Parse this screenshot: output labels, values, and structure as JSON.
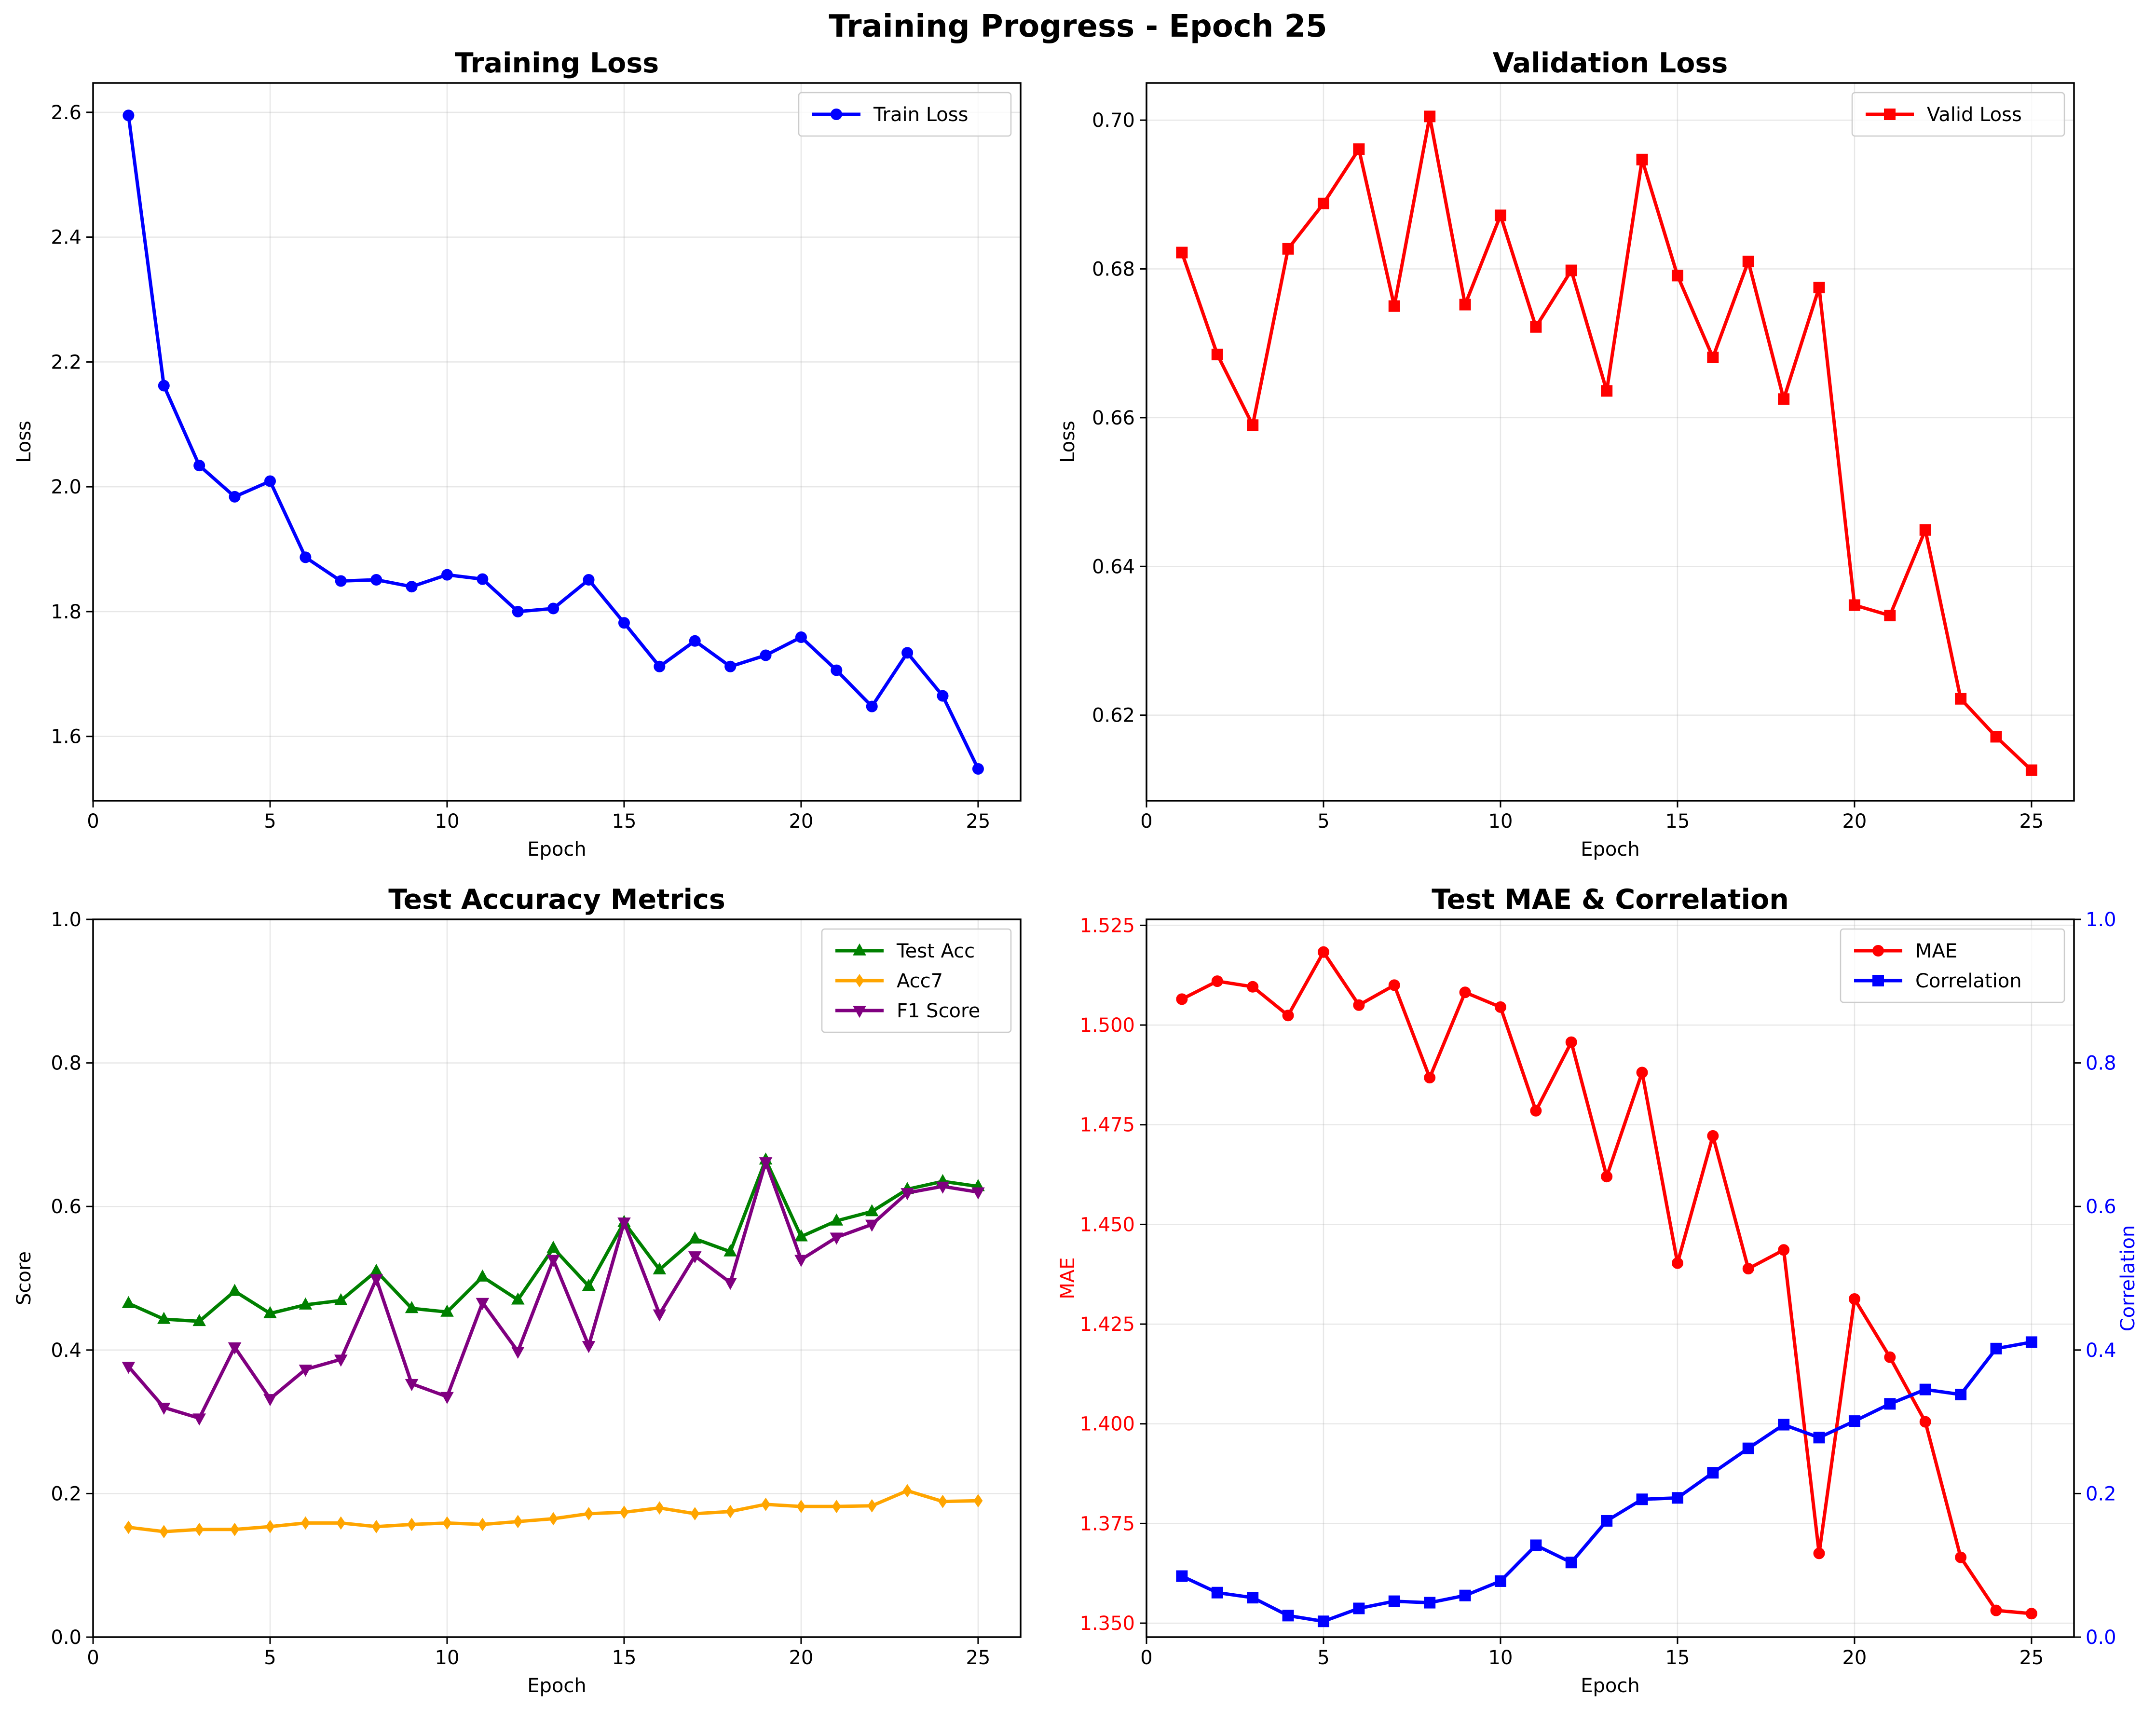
{
  "figure": {
    "title": "Training Progress - Epoch 25"
  },
  "chart_data": [
    {
      "type": "line",
      "title": "Training Loss",
      "xlabel": "Epoch",
      "ylabel": "Loss",
      "xlim": [
        0,
        26.2
      ],
      "ylim": [
        1.497,
        2.647
      ],
      "xticks": [
        0,
        5,
        10,
        15,
        20,
        25
      ],
      "yticks": [
        1.6,
        1.8,
        2.0,
        2.2,
        2.4,
        2.6
      ],
      "ytick_decimals": 1,
      "grid": true,
      "legend": "top-right",
      "x": [
        1,
        2,
        3,
        4,
        5,
        6,
        7,
        8,
        9,
        10,
        11,
        12,
        13,
        14,
        15,
        16,
        17,
        18,
        19,
        20,
        21,
        22,
        23,
        24,
        25
      ],
      "series": [
        {
          "name": "Train Loss",
          "color": "#0000ff",
          "marker": "circle",
          "values": [
            2.595,
            2.162,
            2.034,
            1.984,
            2.009,
            1.887,
            1.849,
            1.851,
            1.84,
            1.859,
            1.852,
            1.8,
            1.805,
            1.851,
            1.782,
            1.712,
            1.753,
            1.712,
            1.73,
            1.759,
            1.706,
            1.648,
            1.734,
            1.665,
            1.548
          ]
        }
      ]
    },
    {
      "type": "line",
      "title": "Validation Loss",
      "xlabel": "Epoch",
      "ylabel": "Loss",
      "xlim": [
        0,
        26.2
      ],
      "ylim": [
        0.6085,
        0.705
      ],
      "xticks": [
        0,
        5,
        10,
        15,
        20,
        25
      ],
      "yticks": [
        0.62,
        0.64,
        0.66,
        0.68,
        0.7
      ],
      "ytick_decimals": 2,
      "grid": true,
      "legend": "top-right",
      "x": [
        1,
        2,
        3,
        4,
        5,
        6,
        7,
        8,
        9,
        10,
        11,
        12,
        13,
        14,
        15,
        16,
        17,
        18,
        19,
        20,
        21,
        22,
        23,
        24,
        25
      ],
      "series": [
        {
          "name": "Valid Loss",
          "color": "#ff0000",
          "marker": "square",
          "values": [
            0.6822,
            0.6685,
            0.659,
            0.6827,
            0.6888,
            0.6961,
            0.675,
            0.7005,
            0.6752,
            0.6872,
            0.6722,
            0.6798,
            0.6636,
            0.6947,
            0.6791,
            0.6681,
            0.681,
            0.6625,
            0.6775,
            0.6348,
            0.6334,
            0.6449,
            0.6222,
            0.6171,
            0.6126
          ]
        }
      ]
    },
    {
      "type": "line",
      "title": "Test Accuracy Metrics",
      "xlabel": "Epoch",
      "ylabel": "Score",
      "xlim": [
        0,
        26.2
      ],
      "ylim": [
        0,
        1.0
      ],
      "xticks": [
        0,
        5,
        10,
        15,
        20,
        25
      ],
      "yticks": [
        0.0,
        0.2,
        0.4,
        0.6,
        0.8,
        1.0
      ],
      "ytick_decimals": 1,
      "grid": true,
      "legend": "top-right",
      "x": [
        1,
        2,
        3,
        4,
        5,
        6,
        7,
        8,
        9,
        10,
        11,
        12,
        13,
        14,
        15,
        16,
        17,
        18,
        19,
        20,
        21,
        22,
        23,
        24,
        25
      ],
      "series": [
        {
          "name": "Test Acc",
          "color": "#008000",
          "marker": "triangle-up",
          "values": [
            0.465,
            0.443,
            0.44,
            0.482,
            0.451,
            0.463,
            0.469,
            0.51,
            0.458,
            0.453,
            0.502,
            0.47,
            0.542,
            0.489,
            0.578,
            0.512,
            0.555,
            0.537,
            0.665,
            0.558,
            0.58,
            0.593,
            0.624,
            0.635,
            0.628
          ]
        },
        {
          "name": "Acc7",
          "color": "#ffa500",
          "marker": "diamond",
          "values": [
            0.153,
            0.147,
            0.15,
            0.15,
            0.154,
            0.159,
            0.159,
            0.154,
            0.157,
            0.159,
            0.157,
            0.161,
            0.165,
            0.172,
            0.174,
            0.18,
            0.172,
            0.175,
            0.185,
            0.182,
            0.182,
            0.183,
            0.204,
            0.189,
            0.19
          ]
        },
        {
          "name": "F1 Score",
          "color": "#800080",
          "marker": "triangle-down",
          "values": [
            0.377,
            0.32,
            0.305,
            0.404,
            0.332,
            0.373,
            0.387,
            0.499,
            0.353,
            0.335,
            0.466,
            0.398,
            0.526,
            0.406,
            0.578,
            0.45,
            0.531,
            0.494,
            0.662,
            0.526,
            0.557,
            0.575,
            0.619,
            0.628,
            0.62
          ]
        }
      ]
    },
    {
      "type": "line",
      "title": "Test MAE & Correlation",
      "xlabel": "Epoch",
      "ylabel": "MAE",
      "ylabel_right": "Correlation",
      "xlim": [
        0,
        26.2
      ],
      "ylim": [
        1.3465,
        1.5265
      ],
      "ylim_right": [
        0,
        1.0
      ],
      "xticks": [
        0,
        5,
        10,
        15,
        20,
        25
      ],
      "yticks": [
        1.35,
        1.375,
        1.4,
        1.425,
        1.45,
        1.475,
        1.5,
        1.525
      ],
      "yticks_right": [
        0.0,
        0.2,
        0.4,
        0.6,
        0.8,
        1.0
      ],
      "ytick_decimals": 3,
      "ytick_decimals_right": 1,
      "left_axis_color": "#ff0000",
      "right_axis_color": "#0000ff",
      "grid": true,
      "legend": "top-right",
      "x": [
        1,
        2,
        3,
        4,
        5,
        6,
        7,
        8,
        9,
        10,
        11,
        12,
        13,
        14,
        15,
        16,
        17,
        18,
        19,
        20,
        21,
        22,
        23,
        24,
        25
      ],
      "series": [
        {
          "name": "MAE",
          "color": "#ff0000",
          "marker": "circle",
          "axis": "left",
          "values": [
            1.5065,
            1.511,
            1.5096,
            1.5024,
            1.5183,
            1.505,
            1.51,
            1.4868,
            1.5082,
            1.5045,
            1.4785,
            1.4957,
            1.462,
            1.4881,
            1.4403,
            1.4722,
            1.4389,
            1.4436,
            1.3675,
            1.4313,
            1.4167,
            1.4005,
            1.3665,
            1.3532,
            1.3524
          ]
        },
        {
          "name": "Correlation",
          "color": "#0000ff",
          "marker": "square",
          "axis": "right",
          "values": [
            0.085,
            0.062,
            0.055,
            0.03,
            0.022,
            0.04,
            0.05,
            0.048,
            0.058,
            0.078,
            0.128,
            0.104,
            0.162,
            0.192,
            0.194,
            0.229,
            0.263,
            0.296,
            0.278,
            0.301,
            0.325,
            0.345,
            0.338,
            0.402,
            0.411
          ]
        }
      ]
    }
  ]
}
